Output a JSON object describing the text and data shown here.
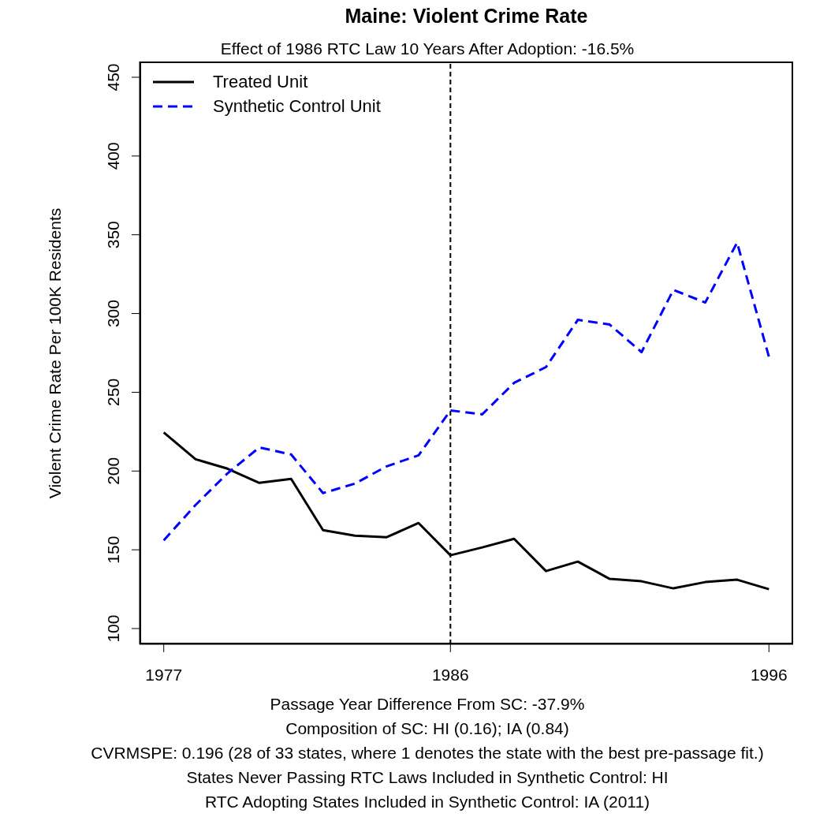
{
  "chart_data": {
    "type": "line",
    "title": "Maine: Violent Crime Rate",
    "subtitle": "Effect of 1986 RTC Law 10 Years After Adoption: -16.5%",
    "ylabel": "Violent Crime Rate Per 100K Residents",
    "x": [
      1977,
      1978,
      1979,
      1980,
      1981,
      1982,
      1983,
      1984,
      1985,
      1986,
      1987,
      1988,
      1989,
      1990,
      1991,
      1992,
      1993,
      1994,
      1995,
      1996
    ],
    "series": [
      {
        "name": "Treated Unit",
        "color": "#000000",
        "line_style": "solid",
        "values": [
          224.5,
          207.5,
          201.5,
          192.5,
          195,
          162.5,
          159,
          158,
          167,
          146.5,
          151.5,
          157,
          136.5,
          142.5,
          131.5,
          130,
          125.5,
          129.5,
          131,
          125
        ]
      },
      {
        "name": "Synthetic Control Unit",
        "color": "#0000ff",
        "line_style": "dashed",
        "values": [
          156,
          178.5,
          198.5,
          215,
          210.5,
          186,
          192,
          203,
          210,
          238.5,
          236,
          256,
          266,
          296,
          293,
          275.5,
          315,
          307,
          345,
          272.5
        ]
      }
    ],
    "xlim": [
      1976.24,
      1996.76
    ],
    "xticks": [
      1977,
      1986,
      1996
    ],
    "ylim": [
      90,
      460
    ],
    "yticks": [
      100,
      150,
      200,
      250,
      300,
      350,
      400,
      450
    ],
    "ref_lines": [
      {
        "axis": "x",
        "value": 1986,
        "color": "#000000",
        "line_style": "dashed"
      }
    ],
    "grid": false,
    "legend": "top left",
    "marker": "none",
    "annotations": [
      "Passage Year Difference From SC: -37.9%",
      "Composition of SC: HI (0.16); IA (0.84)",
      "CVRMSPE: 0.196 (28 of 33 states, where 1 denotes the state with the best pre-passage fit.)",
      "States Never Passing RTC Laws Included in Synthetic Control:  HI",
      "RTC Adopting States Included in Synthetic Control:  IA (2011)"
    ]
  }
}
